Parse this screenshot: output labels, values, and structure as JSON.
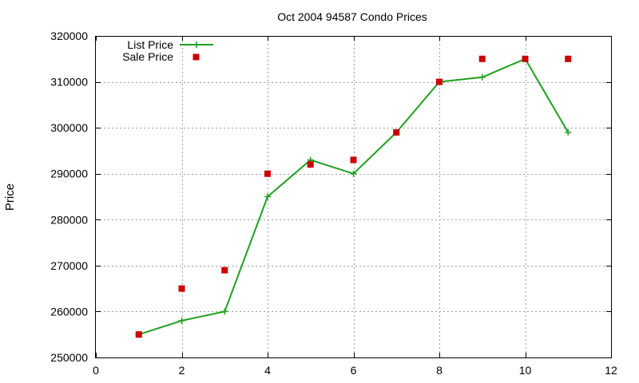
{
  "chart_data": {
    "type": "line",
    "title": "Oct 2004 94587 Condo Prices",
    "xlabel": "",
    "ylabel": "Price",
    "xlim": [
      0,
      12
    ],
    "ylim": [
      250000,
      320000
    ],
    "x_ticks": [
      0,
      2,
      4,
      6,
      8,
      10,
      12
    ],
    "y_ticks": [
      250000,
      260000,
      270000,
      280000,
      290000,
      300000,
      310000,
      320000
    ],
    "x_tick_labels": [
      "0",
      "2",
      "4",
      "6",
      "8",
      "10",
      "12"
    ],
    "y_tick_labels": [
      "250000",
      "260000",
      "270000",
      "280000",
      "290000",
      "300000",
      "310000",
      "320000"
    ],
    "grid": true,
    "legend_position": "top-left",
    "series": [
      {
        "name": "List Price",
        "style": "line-with-plus-markers",
        "color": "#1ea01e",
        "x": [
          1,
          2,
          3,
          4,
          5,
          6,
          7,
          8,
          9,
          10,
          11
        ],
        "y": [
          255000,
          258000,
          260000,
          285000,
          293000,
          290000,
          299000,
          310000,
          311000,
          315000,
          299000
        ]
      },
      {
        "name": "Sale Price",
        "style": "square-markers",
        "color": "#cc0000",
        "x": [
          1,
          2,
          3,
          4,
          5,
          6,
          7,
          8,
          9,
          10,
          11
        ],
        "y": [
          255000,
          265000,
          269000,
          290000,
          292000,
          293000,
          299000,
          310000,
          315000,
          315000,
          315000
        ]
      }
    ]
  }
}
